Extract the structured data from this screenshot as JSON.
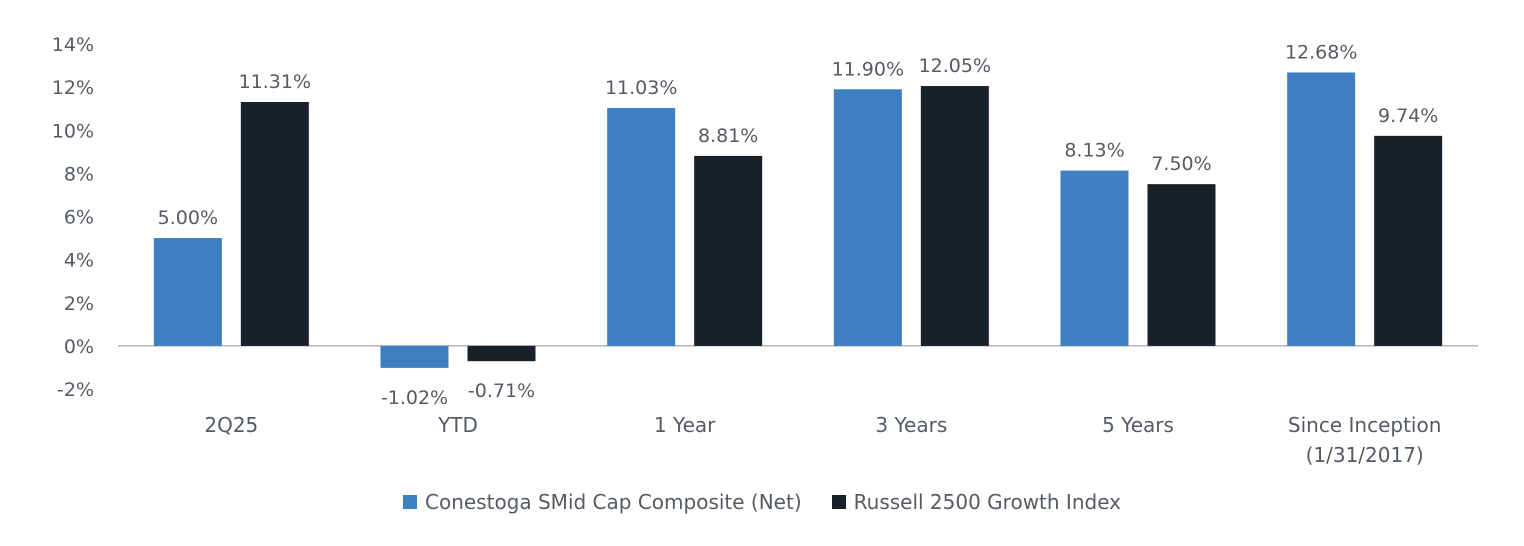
{
  "chart_data": {
    "type": "bar",
    "categories": [
      "2Q25",
      "YTD",
      "1 Year",
      "3 Years",
      "5 Years",
      "Since Inception (1/31/2017)"
    ],
    "category_lines": [
      [
        "2Q25"
      ],
      [
        "YTD"
      ],
      [
        "1 Year"
      ],
      [
        "3 Years"
      ],
      [
        "5 Years"
      ],
      [
        "Since Inception",
        "(1/31/2017)"
      ]
    ],
    "series": [
      {
        "name": "Conestoga SMid Cap Composite (Net)",
        "color": "#3d7fc1",
        "values": [
          5.0,
          -1.02,
          11.03,
          11.9,
          8.13,
          12.68
        ],
        "labels": [
          "5.00%",
          "-1.02%",
          "11.03%",
          "11.90%",
          "8.13%",
          "12.68%"
        ]
      },
      {
        "name": "Russell 2500 Growth Index",
        "color": "#18202a",
        "values": [
          11.31,
          -0.71,
          8.81,
          12.05,
          7.5,
          9.74
        ],
        "labels": [
          "11.31%",
          "-0.71%",
          "8.81%",
          "12.05%",
          "7.50%",
          "9.74%"
        ]
      }
    ],
    "yticks": [
      "14%",
      "12%",
      "10%",
      "8%",
      "6%",
      "4%",
      "2%",
      "0%",
      "-2%"
    ],
    "ytick_values": [
      14,
      12,
      10,
      8,
      6,
      4,
      2,
      0,
      -2
    ],
    "ylim": [
      -2,
      14
    ],
    "title": "",
    "xlabel": "",
    "ylabel": "",
    "grid": false,
    "legend_position": "bottom-center"
  }
}
